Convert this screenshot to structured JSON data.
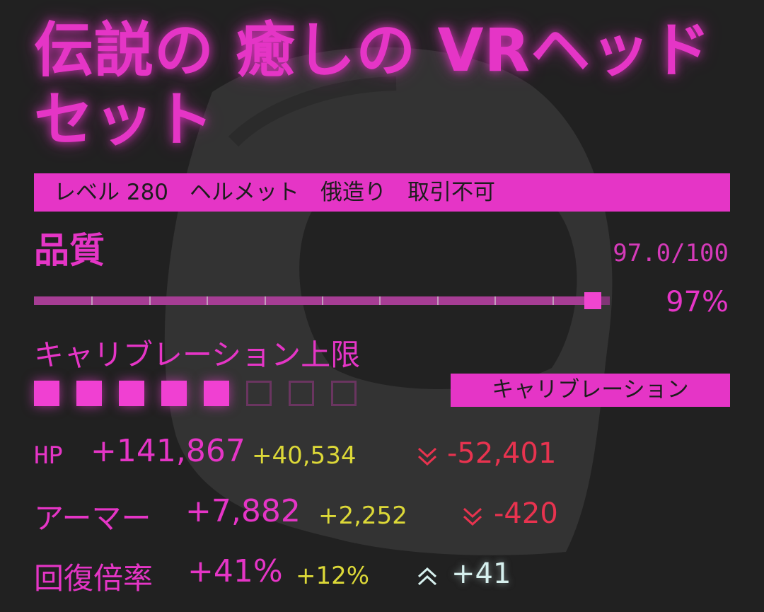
{
  "item": {
    "title": "伝説の 癒しの VRヘッドセット",
    "tags": [
      "レベル 280",
      "ヘルメット",
      "俄造り",
      "取引不可"
    ]
  },
  "quality": {
    "label": "品質",
    "value_text": "97.0/100",
    "percent_text": "97%",
    "value": 97,
    "max": 100
  },
  "calibration": {
    "label": "キャリブレーション上限",
    "filled": 5,
    "total": 8,
    "button_label": "キャリブレーション"
  },
  "stats": [
    {
      "name": "HP",
      "value": "+141,867",
      "bonus": "+40,534",
      "direction": "down",
      "change": "-52,401"
    },
    {
      "name": "アーマー",
      "value": "+7,882",
      "bonus": "+2,252",
      "direction": "down",
      "change": "-420"
    },
    {
      "name": "回復倍率",
      "value": "+41%",
      "bonus": "+12%",
      "direction": "up",
      "change": "+41"
    }
  ],
  "colors": {
    "background": "#212121",
    "accent": "#e535c6",
    "bonus": "#dcd838",
    "negative": "#e8334f",
    "positive": "#d6f0ee"
  }
}
